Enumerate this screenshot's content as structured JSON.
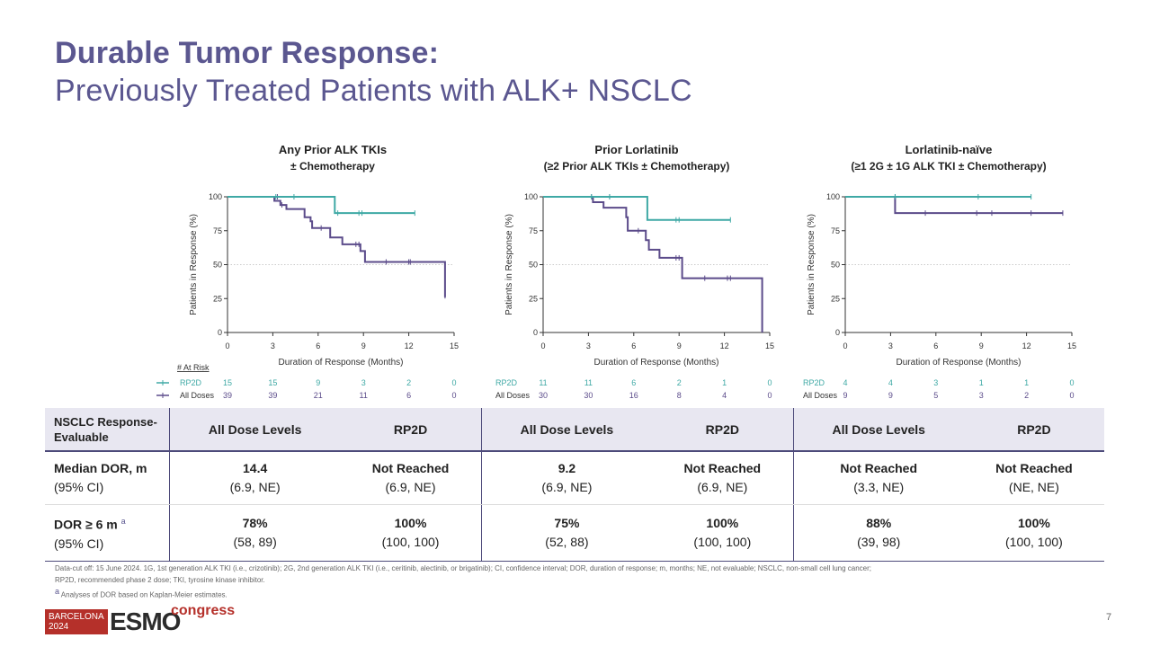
{
  "slide": {
    "title_bold": "Durable Tumor Response:",
    "title_sub": "Previously Treated Patients with ALK+ NSCLC",
    "page_number": "7"
  },
  "colors": {
    "rp2d": "#3fa9a5",
    "all_doses": "#5b4b8a",
    "title": "#5b5790"
  },
  "chart_data": [
    {
      "type": "line",
      "title": "Any Prior ALK TKIs",
      "subtitle": "± Chemotherapy",
      "xlabel": "Duration of Response (Months)",
      "ylabel": "Patients in Response (%)",
      "xlim": [
        0,
        15
      ],
      "ylim": [
        0,
        100
      ],
      "xticks": [
        0,
        3,
        6,
        9,
        12,
        15
      ],
      "yticks": [
        0,
        25,
        50,
        75,
        100
      ],
      "series": [
        {
          "name": "RP2D",
          "steps": [
            [
              0,
              100
            ],
            [
              7.1,
              100
            ],
            [
              7.1,
              88
            ],
            [
              12.4,
              88
            ]
          ],
          "censor": [
            [
              3.2,
              100
            ],
            [
              4.4,
              100
            ],
            [
              7.3,
              88
            ],
            [
              8.7,
              88
            ],
            [
              8.9,
              88
            ],
            [
              12.4,
              88
            ]
          ]
        },
        {
          "name": "All Doses",
          "steps": [
            [
              0,
              100
            ],
            [
              3.1,
              100
            ],
            [
              3.1,
              97
            ],
            [
              3.5,
              97
            ],
            [
              3.5,
              94
            ],
            [
              3.9,
              94
            ],
            [
              3.9,
              91
            ],
            [
              5.1,
              91
            ],
            [
              5.1,
              85
            ],
            [
              5.5,
              85
            ],
            [
              5.5,
              82
            ],
            [
              5.6,
              82
            ],
            [
              5.6,
              77
            ],
            [
              6.8,
              77
            ],
            [
              6.8,
              70
            ],
            [
              7.6,
              70
            ],
            [
              7.6,
              65
            ],
            [
              8.8,
              65
            ],
            [
              8.8,
              60
            ],
            [
              9.1,
              60
            ],
            [
              9.1,
              52
            ],
            [
              14.4,
              52
            ],
            [
              14.4,
              26
            ]
          ],
          "censor": [
            [
              3.3,
              100
            ],
            [
              3.6,
              94
            ],
            [
              6.2,
              77
            ],
            [
              8.5,
              65
            ],
            [
              8.7,
              65
            ],
            [
              10.5,
              52
            ],
            [
              12,
              52
            ],
            [
              12.1,
              52
            ],
            [
              14.4,
              27
            ]
          ]
        }
      ],
      "risk_table": {
        "times": [
          "0",
          "3",
          "6",
          "9",
          "12",
          "15"
        ],
        "rows": [
          {
            "name": "RP2D",
            "values": [
              "15",
              "15",
              "9",
              "3",
              "2",
              "0"
            ]
          },
          {
            "name": "All Doses",
            "values": [
              "39",
              "39",
              "21",
              "11",
              "6",
              "0"
            ]
          }
        ]
      }
    },
    {
      "type": "line",
      "title": "Prior Lorlatinib",
      "subtitle": "(≥2 Prior ALK TKIs ± Chemotherapy)",
      "xlabel": "Duration of Response (Months)",
      "ylabel": "Patients in Response (%)",
      "xlim": [
        0,
        15
      ],
      "ylim": [
        0,
        100
      ],
      "xticks": [
        0,
        3,
        6,
        9,
        12,
        15
      ],
      "yticks": [
        0,
        25,
        50,
        75,
        100
      ],
      "series": [
        {
          "name": "RP2D",
          "steps": [
            [
              0,
              100
            ],
            [
              6.9,
              100
            ],
            [
              6.9,
              83
            ],
            [
              12.4,
              83
            ]
          ],
          "censor": [
            [
              3.2,
              100
            ],
            [
              4.4,
              100
            ],
            [
              8.8,
              83
            ],
            [
              9,
              83
            ],
            [
              12.4,
              83
            ]
          ]
        },
        {
          "name": "All Doses",
          "steps": [
            [
              0,
              100
            ],
            [
              3.3,
              100
            ],
            [
              3.3,
              96
            ],
            [
              4,
              96
            ],
            [
              4,
              92
            ],
            [
              5.5,
              92
            ],
            [
              5.5,
              85
            ],
            [
              5.6,
              85
            ],
            [
              5.6,
              75
            ],
            [
              6.8,
              75
            ],
            [
              6.8,
              68
            ],
            [
              7,
              68
            ],
            [
              7,
              61
            ],
            [
              7.7,
              61
            ],
            [
              7.7,
              55
            ],
            [
              9.2,
              55
            ],
            [
              9.2,
              40
            ],
            [
              14.5,
              40
            ],
            [
              14.5,
              0
            ]
          ],
          "censor": [
            [
              3.2,
              100
            ],
            [
              4.4,
              100
            ],
            [
              6.3,
              75
            ],
            [
              8.8,
              55
            ],
            [
              9,
              55
            ],
            [
              10.7,
              40
            ],
            [
              12.2,
              40
            ],
            [
              12.4,
              40
            ]
          ]
        }
      ],
      "risk_table": {
        "times": [
          "0",
          "3",
          "6",
          "9",
          "12",
          "15"
        ],
        "rows": [
          {
            "name": "RP2D",
            "values": [
              "11",
              "11",
              "6",
              "2",
              "1",
              "0"
            ]
          },
          {
            "name": "All Doses",
            "values": [
              "30",
              "30",
              "16",
              "8",
              "4",
              "0"
            ]
          }
        ]
      }
    },
    {
      "type": "line",
      "title": "Lorlatinib-naïve",
      "subtitle": "(≥1 2G ± 1G ALK TKI ± Chemotherapy)",
      "xlabel": "Duration of Response (Months)",
      "ylabel": "Patients in Response (%)",
      "xlim": [
        0,
        15
      ],
      "ylim": [
        0,
        100
      ],
      "xticks": [
        0,
        3,
        6,
        9,
        12,
        15
      ],
      "yticks": [
        0,
        25,
        50,
        75,
        100
      ],
      "series": [
        {
          "name": "RP2D",
          "steps": [
            [
              0,
              100
            ],
            [
              12.3,
              100
            ]
          ],
          "censor": [
            [
              3.3,
              100
            ],
            [
              8.8,
              100
            ],
            [
              12.3,
              100
            ]
          ]
        },
        {
          "name": "All Doses",
          "steps": [
            [
              0,
              100
            ],
            [
              3.3,
              100
            ],
            [
              3.3,
              88
            ],
            [
              14.4,
              88
            ]
          ],
          "censor": [
            [
              3.3,
              100
            ],
            [
              5.3,
              88
            ],
            [
              8.7,
              88
            ],
            [
              9.7,
              88
            ],
            [
              12.3,
              88
            ],
            [
              14.4,
              88
            ]
          ]
        }
      ],
      "risk_table": {
        "times": [
          "0",
          "3",
          "6",
          "9",
          "12",
          "15"
        ],
        "rows": [
          {
            "name": "RP2D",
            "values": [
              "4",
              "4",
              "3",
              "1",
              "1",
              "0"
            ]
          },
          {
            "name": "All Doses",
            "values": [
              "9",
              "9",
              "5",
              "3",
              "2",
              "0"
            ]
          }
        ]
      }
    }
  ],
  "risk_label": "# At Risk",
  "table": {
    "header": {
      "first": [
        "NSCLC Response-",
        "Evaluable"
      ],
      "cols": [
        "All Dose Levels",
        "RP2D",
        "All Dose Levels",
        "RP2D",
        "All Dose Levels",
        "RP2D"
      ]
    },
    "rows": [
      {
        "label": "Median DOR, m",
        "sub": "(95% CI)",
        "sup": "",
        "values": [
          "14.4",
          "Not Reached",
          "9.2",
          "Not Reached",
          "Not Reached",
          "Not Reached"
        ],
        "ci": [
          "(6.9, NE)",
          "(6.9, NE)",
          "(6.9, NE)",
          "(6.9, NE)",
          "(3.3, NE)",
          "(NE, NE)"
        ]
      },
      {
        "label": "DOR ≥ 6 m",
        "sub": "(95% CI)",
        "sup": "a",
        "values": [
          "78%",
          "100%",
          "75%",
          "100%",
          "88%",
          "100%"
        ],
        "ci": [
          "(58, 89)",
          "(100, 100)",
          "(52, 88)",
          "(100, 100)",
          "(39, 98)",
          "(100, 100)"
        ]
      }
    ]
  },
  "footnote": {
    "line1": "Data-cut off: 15 June 2024. 1G, 1st generation ALK TKI (i.e., crizotinib); 2G, 2nd generation ALK TKI (i.e., ceritinib, alectinib, or brigatinib); CI, confidence interval; DOR, duration of response; m, months; NE, not evaluable; NSCLC, non-small cell lung cancer;",
    "line2": "RP2D, recommended phase 2 dose; TKI, tyrosine kinase inhibitor.",
    "line3": "Analyses of DOR based on Kaplan-Meier estimates.",
    "line3_sup": "a"
  },
  "logo": {
    "city": "BARCELONA",
    "year": "2024",
    "brand": "ESMO",
    "word": "congress"
  }
}
